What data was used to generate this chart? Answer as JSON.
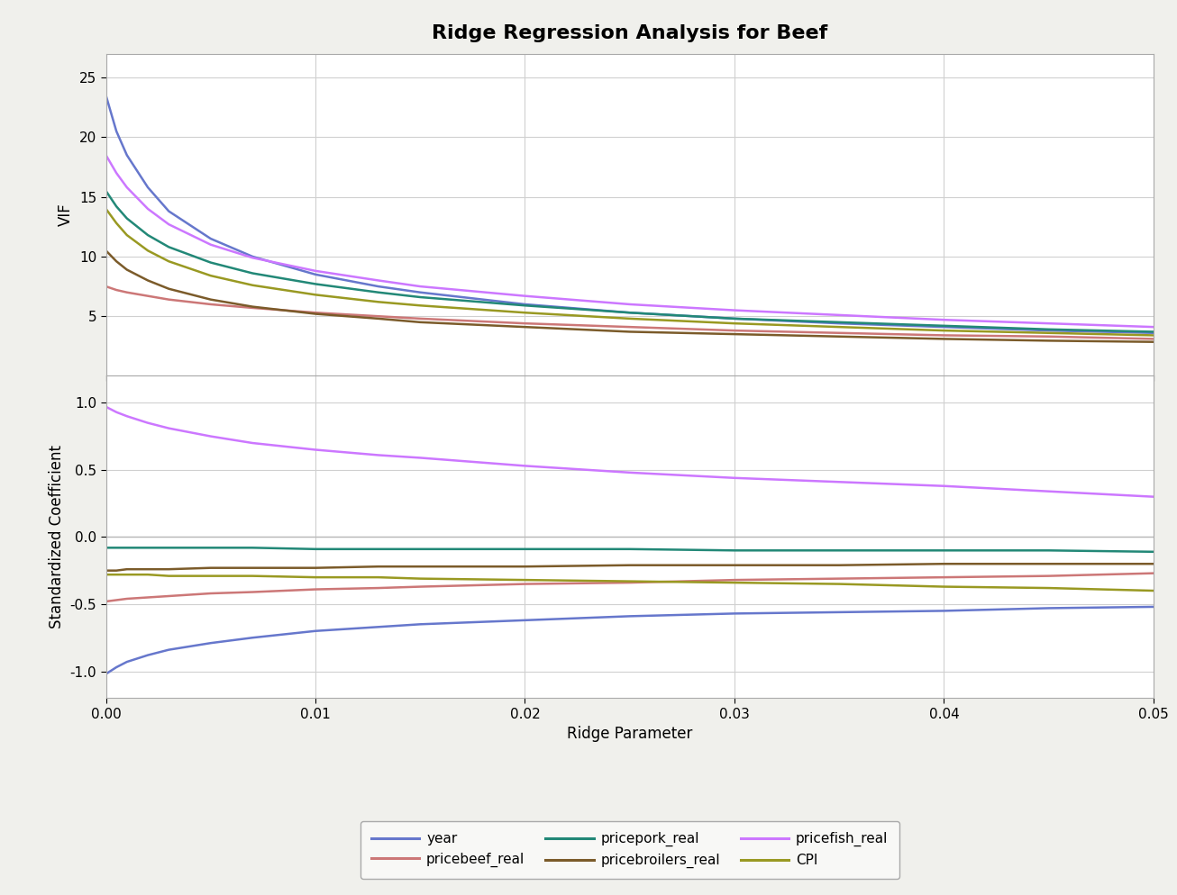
{
  "title": "Ridge Regression Analysis for Beef",
  "xlabel": "Ridge Parameter",
  "ylabel_top": "VIF",
  "ylabel_bottom": "Standardized Coefficient",
  "ridge_params": [
    0.0,
    0.0005,
    0.001,
    0.002,
    0.003,
    0.005,
    0.007,
    0.01,
    0.013,
    0.015,
    0.02,
    0.025,
    0.03,
    0.035,
    0.04,
    0.045,
    0.05
  ],
  "vif_data": {
    "year": [
      23.5,
      20.5,
      18.5,
      15.8,
      13.8,
      11.5,
      10.0,
      8.5,
      7.5,
      7.0,
      6.0,
      5.3,
      4.8,
      4.4,
      4.1,
      3.8,
      3.6
    ],
    "pricebeef_real": [
      7.5,
      7.2,
      7.0,
      6.7,
      6.4,
      6.0,
      5.7,
      5.3,
      5.0,
      4.8,
      4.4,
      4.1,
      3.8,
      3.6,
      3.4,
      3.3,
      3.1
    ],
    "pricepork_real": [
      15.5,
      14.2,
      13.2,
      11.8,
      10.8,
      9.5,
      8.6,
      7.7,
      7.0,
      6.6,
      5.9,
      5.3,
      4.8,
      4.5,
      4.2,
      3.9,
      3.7
    ],
    "pricebroilers_real": [
      10.5,
      9.6,
      8.9,
      8.0,
      7.3,
      6.4,
      5.8,
      5.2,
      4.8,
      4.5,
      4.1,
      3.7,
      3.5,
      3.3,
      3.1,
      2.95,
      2.85
    ],
    "pricefish_real": [
      18.5,
      17.0,
      15.8,
      14.0,
      12.7,
      11.0,
      9.9,
      8.8,
      8.0,
      7.5,
      6.7,
      6.0,
      5.5,
      5.1,
      4.7,
      4.4,
      4.1
    ],
    "CPI": [
      14.0,
      12.8,
      11.8,
      10.5,
      9.6,
      8.4,
      7.6,
      6.8,
      6.2,
      5.9,
      5.3,
      4.8,
      4.4,
      4.1,
      3.8,
      3.6,
      3.4
    ]
  },
  "coeff_data": {
    "year": [
      -1.02,
      -0.97,
      -0.93,
      -0.88,
      -0.84,
      -0.79,
      -0.75,
      -0.7,
      -0.67,
      -0.65,
      -0.62,
      -0.59,
      -0.57,
      -0.56,
      -0.55,
      -0.53,
      -0.52
    ],
    "pricebeef_real": [
      -0.48,
      -0.47,
      -0.46,
      -0.45,
      -0.44,
      -0.42,
      -0.41,
      -0.39,
      -0.38,
      -0.37,
      -0.35,
      -0.34,
      -0.32,
      -0.31,
      -0.3,
      -0.29,
      -0.27
    ],
    "pricepork_real": [
      -0.08,
      -0.08,
      -0.08,
      -0.08,
      -0.08,
      -0.08,
      -0.08,
      -0.09,
      -0.09,
      -0.09,
      -0.09,
      -0.09,
      -0.1,
      -0.1,
      -0.1,
      -0.1,
      -0.11
    ],
    "pricebroilers_real": [
      -0.25,
      -0.25,
      -0.24,
      -0.24,
      -0.24,
      -0.23,
      -0.23,
      -0.23,
      -0.22,
      -0.22,
      -0.22,
      -0.21,
      -0.21,
      -0.21,
      -0.2,
      -0.2,
      -0.2
    ],
    "pricefish_real": [
      0.97,
      0.93,
      0.9,
      0.85,
      0.81,
      0.75,
      0.7,
      0.65,
      0.61,
      0.59,
      0.53,
      0.48,
      0.44,
      0.41,
      0.38,
      0.34,
      0.3
    ],
    "CPI": [
      -0.28,
      -0.28,
      -0.28,
      -0.28,
      -0.29,
      -0.29,
      -0.29,
      -0.3,
      -0.3,
      -0.31,
      -0.32,
      -0.33,
      -0.34,
      -0.35,
      -0.37,
      -0.38,
      -0.4
    ]
  },
  "colors": {
    "year": "#6677CC",
    "pricebeef_real": "#CC7777",
    "pricepork_real": "#228877",
    "pricebroilers_real": "#7B5B2A",
    "pricefish_real": "#CC77FF",
    "CPI": "#999922"
  },
  "legend_order": [
    "year",
    "pricebeef_real",
    "pricepork_real",
    "pricebroilers_real",
    "pricefish_real",
    "CPI"
  ],
  "vif_ylim": [
    0,
    27
  ],
  "vif_yticks": [
    5,
    10,
    15,
    20,
    25
  ],
  "coeff_ylim": [
    -1.2,
    1.2
  ],
  "coeff_yticks": [
    -1.0,
    -0.5,
    0.0,
    0.5,
    1.0
  ],
  "xlim": [
    0.0,
    0.05
  ],
  "xticks": [
    0.0,
    0.01,
    0.02,
    0.03,
    0.04,
    0.05
  ],
  "background_color": "#f0f0ec",
  "plot_bg_color": "#ffffff",
  "grid_color": "#d0d0d0",
  "title_fontsize": 16,
  "axis_label_fontsize": 12,
  "tick_fontsize": 11,
  "legend_fontsize": 11
}
